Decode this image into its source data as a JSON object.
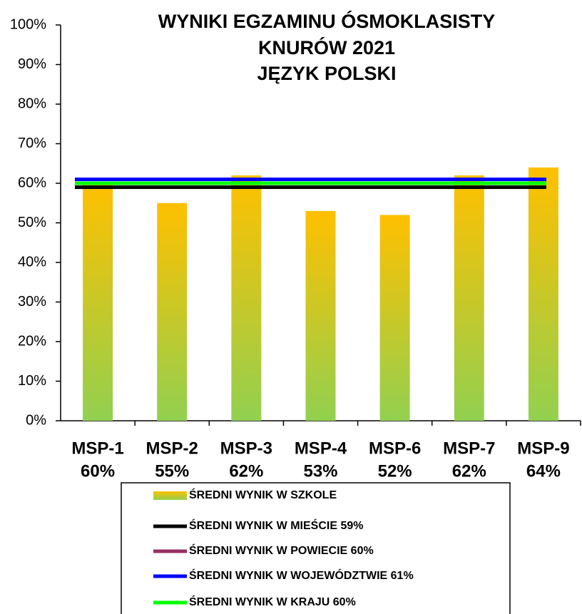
{
  "chart_data": {
    "type": "bar",
    "title": [
      "WYNIKI EGZAMINU ÓSMOKLASISTY",
      "KNURÓW 2021",
      "JĘZYK POLSKI"
    ],
    "categories": [
      "MSP-1",
      "MSP-2",
      "MSP-3",
      "MSP-4",
      "MSP-6",
      "MSP-7",
      "MSP-9"
    ],
    "values": [
      60,
      55,
      62,
      53,
      52,
      62,
      64
    ],
    "value_labels": [
      "60%",
      "55%",
      "62%",
      "53%",
      "52%",
      "62%",
      "64%"
    ],
    "bar_name": "ŚREDNI WYNIK W SZKOLE",
    "colors": [
      "#FFC000",
      "#92D050"
    ],
    "reference_lines": [
      {
        "name": "ŚREDNI WYNIK W MIEŚCIE 59%",
        "color": "#000000",
        "value": 59
      },
      {
        "name": "ŚREDNI WYNIK W POWIECIE 60%",
        "color": "#953163",
        "value": 60
      },
      {
        "name": "ŚREDNI WYNIK W WOJEWÓDZTWIE 61%",
        "color": "#0000FF",
        "value": 61
      },
      {
        "name": "ŚREDNI WYNIK W KRAJU 60%",
        "color": "#00FF00",
        "value": 60
      }
    ],
    "ylim": [
      0,
      100
    ],
    "yticks": [
      {
        "value": 0,
        "label": "0%"
      },
      {
        "value": 10,
        "label": "10%"
      },
      {
        "value": 20,
        "label": "20%"
      },
      {
        "value": 30,
        "label": "30%"
      },
      {
        "value": 40,
        "label": "40%"
      },
      {
        "value": 50,
        "label": "50%"
      },
      {
        "value": 60,
        "label": "60%"
      },
      {
        "value": 70,
        "label": "70%"
      },
      {
        "value": 80,
        "label": "80%"
      },
      {
        "value": 90,
        "label": "90%"
      },
      {
        "value": 100,
        "label": "100%"
      }
    ],
    "grid": false
  }
}
